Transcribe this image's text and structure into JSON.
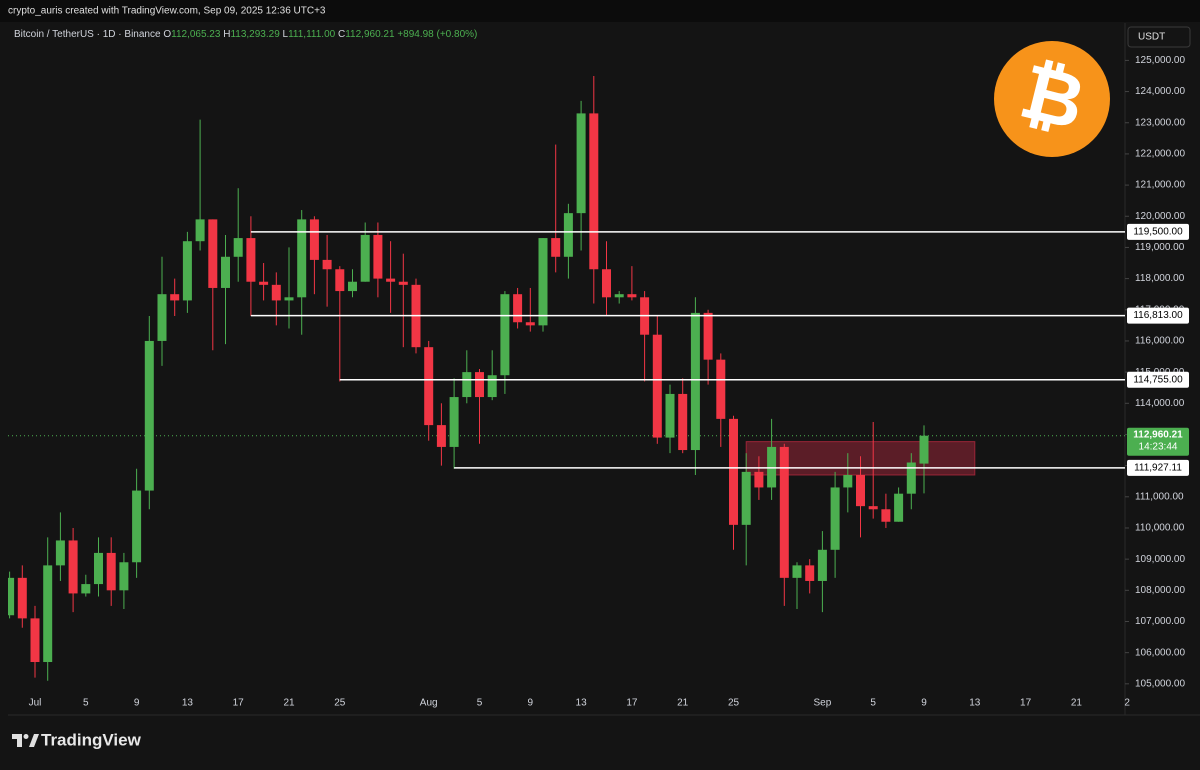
{
  "header": {
    "credit": "crypto_auris created with TradingView.com, Sep 09, 2025 12:36 UTC+3",
    "symbol": "Bitcoin / TetherUS · 1D · Binance",
    "ohlc": [
      {
        "key": "O",
        "value": "112,065.23"
      },
      {
        "key": "H",
        "value": "113,293.29"
      },
      {
        "key": "L",
        "value": "111,111.00"
      },
      {
        "key": "C",
        "value": "112,960.21"
      }
    ],
    "change": "+894.98 (+0.80%)",
    "currency": "USDT",
    "badge": "₿"
  },
  "footer": {
    "brand": "TradingView"
  },
  "chart_data": {
    "type": "candlestick",
    "up_color": "#4caf50",
    "down_color": "#f23645",
    "grid": false,
    "categories": [
      null,
      null,
      "Jul",
      null,
      null,
      null,
      "5",
      null,
      null,
      null,
      "9",
      null,
      null,
      null,
      "13",
      null,
      null,
      null,
      "17",
      null,
      null,
      null,
      "21",
      null,
      null,
      null,
      "25",
      null,
      null,
      null,
      null,
      null,
      null,
      "Aug",
      null,
      null,
      null,
      "5",
      null,
      null,
      null,
      "9",
      null,
      null,
      null,
      "13",
      null,
      null,
      null,
      "17",
      null,
      null,
      null,
      "21",
      null,
      null,
      null,
      "25",
      null,
      null,
      null,
      null,
      null,
      null,
      "Sep",
      null,
      null,
      null,
      "5",
      null,
      null,
      null,
      "9",
      null,
      null,
      null,
      "13",
      null,
      null,
      null,
      "17",
      null,
      null,
      null,
      "21",
      null,
      null,
      null,
      "2"
    ],
    "open": [
      107200,
      108400,
      107100,
      105700,
      108800,
      109600,
      107900,
      108200,
      109200,
      108000,
      108900,
      111200,
      116000,
      117500,
      117300,
      119200,
      119900,
      117700,
      118700,
      119300,
      117900,
      117800,
      117300,
      117400,
      119900,
      118600,
      118300,
      117600,
      117900,
      119400,
      118000,
      117900,
      117800,
      115800,
      113300,
      112600,
      114200,
      115000,
      114200,
      114900,
      117500,
      116600,
      116500,
      119300,
      118700,
      120100,
      123300,
      118300,
      117400,
      117500,
      117400,
      116200,
      112900,
      114300,
      112500,
      116900,
      115400,
      113500,
      110100,
      111800,
      111300,
      112600,
      108400,
      108800,
      108300,
      109300,
      111300,
      111700,
      110700,
      110600,
      110200,
      111100,
      112065.23,
      null,
      null,
      null,
      null,
      null,
      null,
      null,
      null,
      null,
      null,
      null,
      null,
      null,
      null,
      null,
      null
    ],
    "high": [
      108600,
      108800,
      107500,
      109700,
      110500,
      110000,
      108500,
      109700,
      109700,
      109200,
      111900,
      116800,
      118700,
      118000,
      119500,
      123100,
      119900,
      119400,
      120900,
      120000,
      118500,
      118200,
      119000,
      120200,
      120000,
      119400,
      118400,
      118300,
      119800,
      119800,
      119200,
      118800,
      118000,
      116000,
      114000,
      114800,
      115700,
      115100,
      115700,
      117600,
      117700,
      117700,
      119300,
      122300,
      120400,
      123700,
      124500,
      119200,
      117600,
      118400,
      117600,
      116800,
      114600,
      114800,
      117400,
      117000,
      115600,
      113600,
      112400,
      112300,
      113500,
      112700,
      108900,
      109000,
      109900,
      111800,
      112400,
      112300,
      113400,
      111100,
      111300,
      112400,
      113293.29,
      null,
      null,
      null,
      null,
      null,
      null,
      null,
      null,
      null,
      null,
      null,
      null,
      null,
      null,
      null,
      null
    ],
    "low": [
      107100,
      106800,
      105200,
      105100,
      108300,
      107300,
      107800,
      107800,
      107500,
      107400,
      108400,
      110600,
      115200,
      116800,
      116900,
      118900,
      115700,
      115900,
      117900,
      116800,
      117300,
      116500,
      116400,
      116200,
      117500,
      117100,
      114700,
      117400,
      117900,
      117400,
      116900,
      115800,
      115600,
      112800,
      112000,
      111900,
      114000,
      112700,
      114100,
      114300,
      116400,
      116300,
      116300,
      118200,
      118000,
      118900,
      117200,
      116800,
      117200,
      117300,
      114700,
      112700,
      112400,
      112400,
      111700,
      114600,
      112600,
      109300,
      108800,
      110900,
      110900,
      107500,
      107400,
      107900,
      107300,
      108400,
      110500,
      109700,
      110300,
      110000,
      110200,
      110600,
      111111,
      null,
      null,
      null,
      null,
      null,
      null,
      null,
      null,
      null,
      null,
      null,
      null,
      null,
      null,
      null,
      null
    ],
    "close": [
      108400,
      107100,
      105700,
      108800,
      109600,
      107900,
      108200,
      109200,
      108000,
      108900,
      111200,
      116000,
      117500,
      117300,
      119200,
      119900,
      117700,
      118700,
      119300,
      117900,
      117800,
      117300,
      117400,
      119900,
      118600,
      118300,
      117600,
      117900,
      119400,
      118000,
      117900,
      117800,
      115800,
      113300,
      112600,
      114200,
      115000,
      114200,
      114900,
      117500,
      116600,
      116500,
      119300,
      118700,
      120100,
      123300,
      118300,
      117400,
      117500,
      117400,
      116200,
      112900,
      114300,
      112500,
      116900,
      115400,
      113500,
      110100,
      111800,
      111300,
      112600,
      108400,
      108800,
      108300,
      109300,
      111300,
      111700,
      110700,
      110600,
      110200,
      111100,
      112100,
      112960.21,
      null,
      null,
      null,
      null,
      null,
      null,
      null,
      null,
      null,
      null,
      null,
      null,
      null,
      null,
      null,
      null
    ],
    "ylim": [
      104000,
      126200
    ],
    "yticks": [
      {
        "value": 105000,
        "label": "105,000.00"
      },
      {
        "value": 106000,
        "label": "106,000.00"
      },
      {
        "value": 107000,
        "label": "107,000.00"
      },
      {
        "value": 108000,
        "label": "108,000.00"
      },
      {
        "value": 109000,
        "label": "109,000.00"
      },
      {
        "value": 110000,
        "label": "110,000.00"
      },
      {
        "value": 111000,
        "label": "111,000.00"
      },
      {
        "value": 112000,
        "label": "112,000.00"
      },
      {
        "value": 113000,
        "label": "113,000.00"
      },
      {
        "value": 114000,
        "label": "114,000.00"
      },
      {
        "value": 115000,
        "label": "115,000.00"
      },
      {
        "value": 116000,
        "label": "116,000.00"
      },
      {
        "value": 117000,
        "label": "117,000.00"
      },
      {
        "value": 118000,
        "label": "118,000.00"
      },
      {
        "value": 119000,
        "label": "119,000.00"
      },
      {
        "value": 120000,
        "label": "120,000.00"
      },
      {
        "value": 121000,
        "label": "121,000.00"
      },
      {
        "value": 122000,
        "label": "122,000.00"
      },
      {
        "value": 123000,
        "label": "123,000.00"
      },
      {
        "value": 124000,
        "label": "124,000.00"
      },
      {
        "value": 125000,
        "label": "125,000.00"
      }
    ],
    "levels": [
      {
        "value": 119500,
        "label": "119,500.00",
        "from": 19
      },
      {
        "value": 116813,
        "label": "116,813.00",
        "from": 19
      },
      {
        "value": 114755,
        "label": "114,755.00",
        "from": 26
      },
      {
        "value": 111927.11,
        "label": "111,927.11",
        "from": 35
      }
    ],
    "zone": {
      "top": 112770,
      "bottom": 111700,
      "from": 58,
      "to": 76,
      "color": "#b2283d"
    },
    "last_price": {
      "value": 112960.21,
      "label": "112,960.21",
      "countdown": "14:23:44"
    }
  }
}
